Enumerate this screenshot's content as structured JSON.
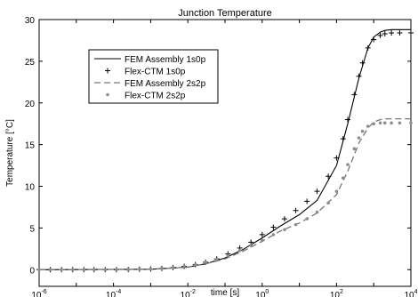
{
  "chart_data": {
    "type": "line",
    "title": "Junction Temperature",
    "xlabel": "time [s]",
    "ylabel": "Temperature [°C]",
    "xscale": "log",
    "xlim": [
      1e-06,
      10000
    ],
    "ylim": [
      -2,
      30
    ],
    "x_ticks": [
      {
        "value": 1e-06,
        "base": "10",
        "exp": "-6"
      },
      {
        "value": 0.0001,
        "base": "10",
        "exp": "-4"
      },
      {
        "value": 0.01,
        "base": "10",
        "exp": "-2"
      },
      {
        "value": 1,
        "base": "10",
        "exp": "0"
      },
      {
        "value": 100,
        "base": "10",
        "exp": "2"
      },
      {
        "value": 10000,
        "base": "10",
        "exp": "4"
      }
    ],
    "y_ticks": [
      0,
      5,
      10,
      15,
      20,
      25,
      30
    ],
    "grid": false,
    "legend_position": "top-left",
    "series": [
      {
        "name": "FEM Assembly 1s0p",
        "style": "solid",
        "color": "#000000",
        "x": [
          1e-06,
          0.001,
          0.01,
          0.03,
          0.1,
          0.3,
          1,
          3,
          10,
          30,
          100,
          200,
          400,
          700,
          1000,
          1500,
          2000,
          3000,
          5000,
          10000
        ],
        "y": [
          0,
          0.05,
          0.3,
          0.7,
          1.4,
          2.4,
          3.8,
          5.2,
          6.6,
          8.3,
          12.5,
          17.5,
          23.0,
          26.6,
          27.9,
          28.5,
          28.7,
          28.8,
          28.8,
          28.8
        ]
      },
      {
        "name": "Flex-CTM 1s0p",
        "style": "plus",
        "color": "#000000",
        "x": [
          1e-06,
          2e-06,
          4e-06,
          8e-06,
          1.6e-05,
          3e-05,
          6e-05,
          0.00012,
          0.00025,
          0.0005,
          0.001,
          0.002,
          0.004,
          0.008,
          0.016,
          0.03,
          0.06,
          0.12,
          0.25,
          0.5,
          1,
          2,
          4,
          8,
          16,
          30,
          60,
          100,
          150,
          200,
          300,
          400,
          500,
          700,
          1000,
          1500,
          2000,
          3000,
          5000,
          10000
        ],
        "y": [
          0,
          0,
          0,
          0,
          0,
          0,
          0,
          0,
          0.02,
          0.05,
          0.08,
          0.15,
          0.25,
          0.4,
          0.6,
          0.9,
          1.3,
          1.9,
          2.6,
          3.3,
          4.2,
          5.1,
          6.1,
          7.1,
          8.2,
          9.4,
          11.2,
          13.4,
          15.7,
          18.0,
          21.0,
          23.2,
          24.8,
          26.6,
          27.6,
          28.1,
          28.3,
          28.4,
          28.4,
          28.4
        ]
      },
      {
        "name": "FEM Assembly 2s2p",
        "style": "dashed",
        "color": "#777777",
        "x": [
          1e-06,
          0.001,
          0.01,
          0.03,
          0.1,
          0.3,
          1,
          3,
          10,
          30,
          100,
          200,
          400,
          700,
          1000,
          1500,
          2000,
          3000,
          5000,
          10000
        ],
        "y": [
          0,
          0.05,
          0.3,
          0.7,
          1.3,
          2.2,
          3.4,
          4.6,
          5.6,
          6.8,
          9.0,
          11.8,
          15.2,
          17.0,
          17.7,
          18.0,
          18.1,
          18.1,
          18.1,
          18.1
        ]
      },
      {
        "name": "Flex-CTM 2s2p",
        "style": "dot",
        "color": "#8c8c8c",
        "x": [
          1e-06,
          2e-06,
          4e-06,
          8e-06,
          1.6e-05,
          3e-05,
          6e-05,
          0.00012,
          0.00025,
          0.0005,
          0.001,
          0.002,
          0.004,
          0.008,
          0.016,
          0.03,
          0.06,
          0.12,
          0.25,
          0.5,
          1,
          2,
          4,
          8,
          16,
          30,
          60,
          100,
          150,
          200,
          300,
          400,
          500,
          700,
          1000,
          1500,
          2000,
          3000,
          5000,
          10000
        ],
        "y": [
          0,
          0,
          0,
          0,
          0,
          0,
          0,
          0,
          0.02,
          0.05,
          0.08,
          0.15,
          0.25,
          0.4,
          0.6,
          0.9,
          1.2,
          1.7,
          2.3,
          2.9,
          3.5,
          4.2,
          4.8,
          5.4,
          6.1,
          6.9,
          8.0,
          9.4,
          11.0,
          12.6,
          14.5,
          15.8,
          16.6,
          17.2,
          17.5,
          17.6,
          17.6,
          17.6,
          17.6,
          17.6
        ]
      }
    ]
  }
}
